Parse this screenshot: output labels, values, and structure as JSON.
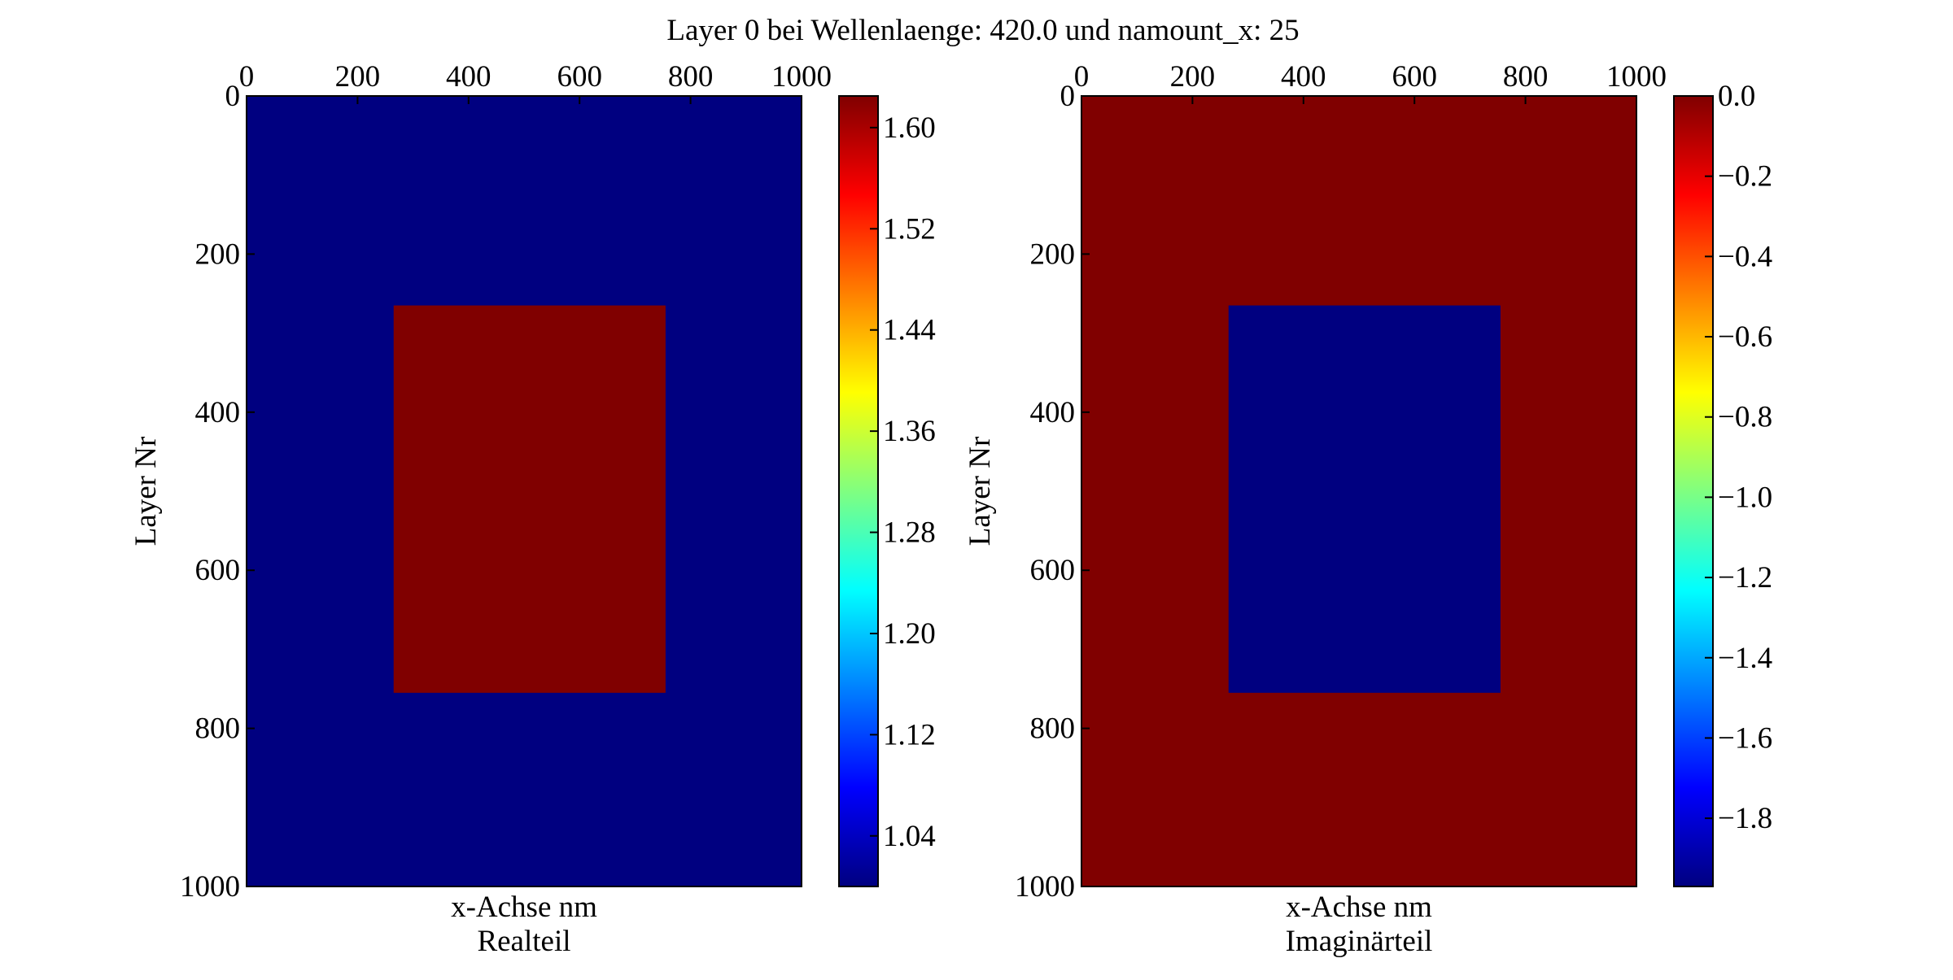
{
  "figure_title": "Layer 0 bei Wellenlaenge: 420.0 und namount_x: 25",
  "colors": {
    "low": "#000080",
    "high": "#800000",
    "jet_stops": [
      "#000080",
      "#0000ff",
      "#0080ff",
      "#00ffff",
      "#80ff80",
      "#ffff00",
      "#ff8000",
      "#ff0000",
      "#800000"
    ]
  },
  "chart_data": [
    {
      "type": "heatmap",
      "title": "Realteil",
      "xlabel": "x-Achse nm",
      "ylabel": "Layer Nr",
      "x_ticks": [
        "0",
        "200",
        "400",
        "600",
        "800",
        "1000"
      ],
      "y_ticks": [
        "0",
        "200",
        "400",
        "600",
        "800",
        "1000"
      ],
      "xlim": [
        0,
        1000
      ],
      "ylim": [
        1000,
        0
      ],
      "x_axis_position": "top",
      "grid": false,
      "background_value": 1.0,
      "inner_region": {
        "x": [
          265,
          755
        ],
        "y": [
          265,
          755
        ],
        "value": 1.625
      },
      "colorbar": {
        "range": [
          1.0,
          1.625
        ],
        "ticks": [
          "1.04",
          "1.12",
          "1.20",
          "1.28",
          "1.36",
          "1.44",
          "1.52",
          "1.60"
        ]
      }
    },
    {
      "type": "heatmap",
      "title": "Imaginärteil",
      "xlabel": "x-Achse nm",
      "ylabel": "Layer Nr",
      "x_ticks": [
        "0",
        "200",
        "400",
        "600",
        "800",
        "1000"
      ],
      "y_ticks": [
        "0",
        "200",
        "400",
        "600",
        "800",
        "1000"
      ],
      "xlim": [
        0,
        1000
      ],
      "ylim": [
        1000,
        0
      ],
      "x_axis_position": "top",
      "grid": false,
      "background_value": 0.0,
      "inner_region": {
        "x": [
          265,
          755
        ],
        "y": [
          265,
          755
        ],
        "value": -1.97
      },
      "colorbar": {
        "range": [
          -1.97,
          0.0
        ],
        "ticks": [
          "0.0",
          "−0.2",
          "−0.4",
          "−0.6",
          "−0.8",
          "−1.0",
          "−1.2",
          "−1.4",
          "−1.6",
          "−1.8"
        ]
      }
    }
  ]
}
